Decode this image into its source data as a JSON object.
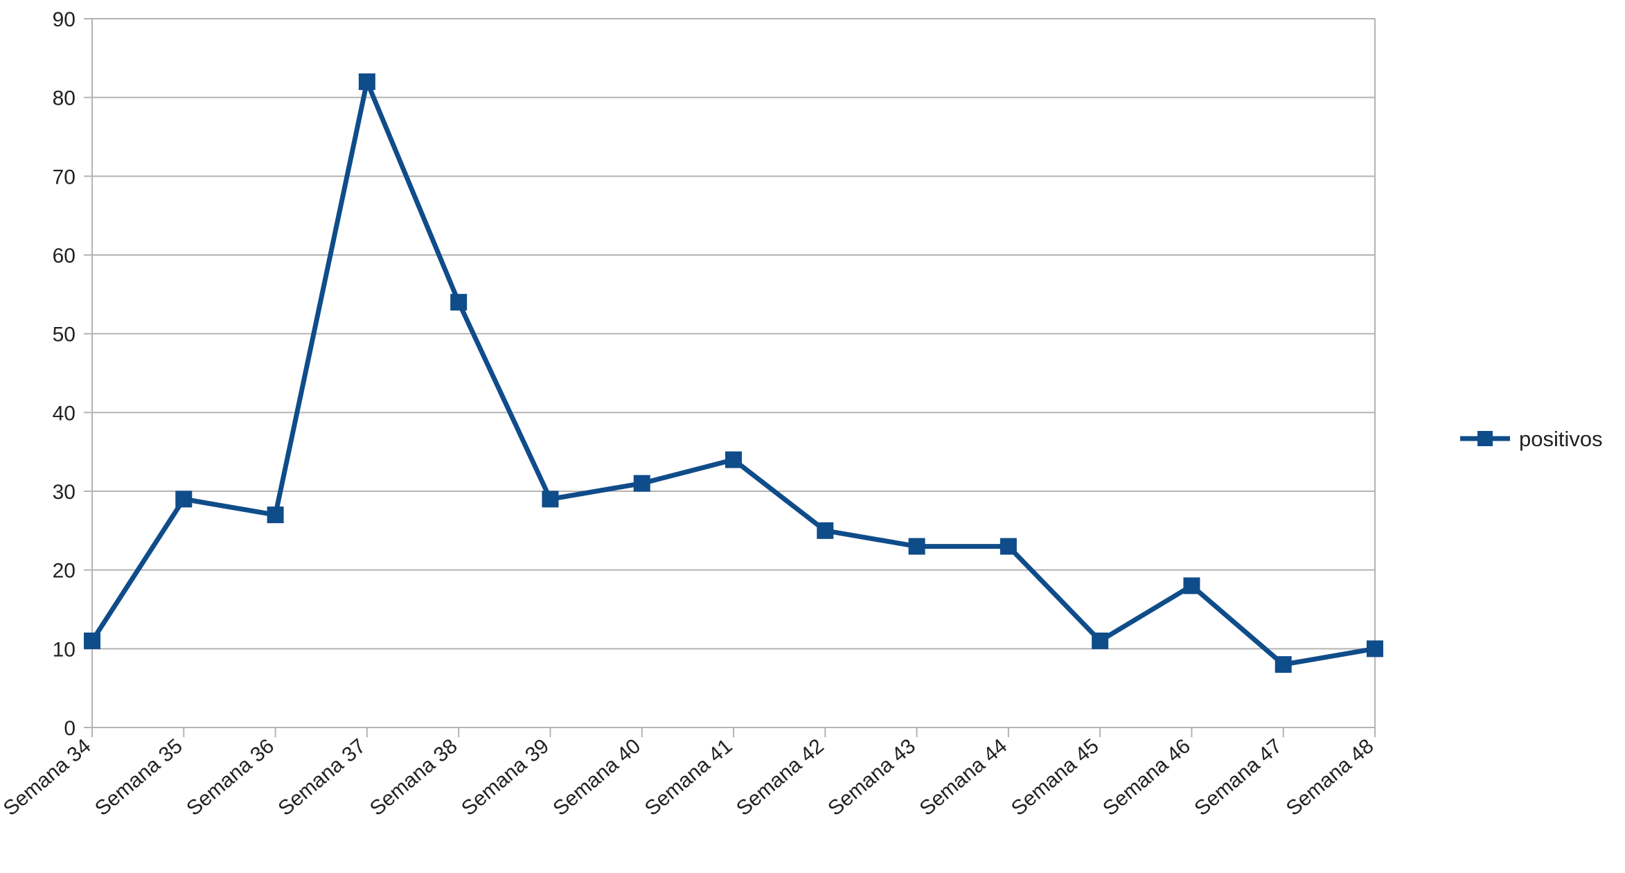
{
  "chart_data": {
    "type": "line",
    "title": "",
    "xlabel": "",
    "ylabel": "",
    "categories": [
      "Semana 34",
      "Semana 35",
      "Semana 36",
      "Semana 37",
      "Semana 38",
      "Semana 39",
      "Semana 40",
      "Semana 41",
      "Semana 42",
      "Semana 43",
      "Semana 44",
      "Semana 45",
      "Semana 46",
      "Semana 47",
      "Semana 48"
    ],
    "series": [
      {
        "name": "positivos",
        "values": [
          11,
          29,
          27,
          82,
          54,
          29,
          31,
          34,
          25,
          23,
          23,
          11,
          18,
          8,
          10
        ],
        "color": "#0f4c8a",
        "marker": "square"
      }
    ],
    "ylim": [
      0,
      90
    ],
    "yticks": [
      0,
      10,
      20,
      30,
      40,
      50,
      60,
      70,
      80,
      90
    ],
    "grid": true,
    "legend": "right",
    "colors": {
      "line": "#0f4c8a",
      "grid": "#b3b3b3",
      "axis": "#b3b3b3"
    }
  }
}
